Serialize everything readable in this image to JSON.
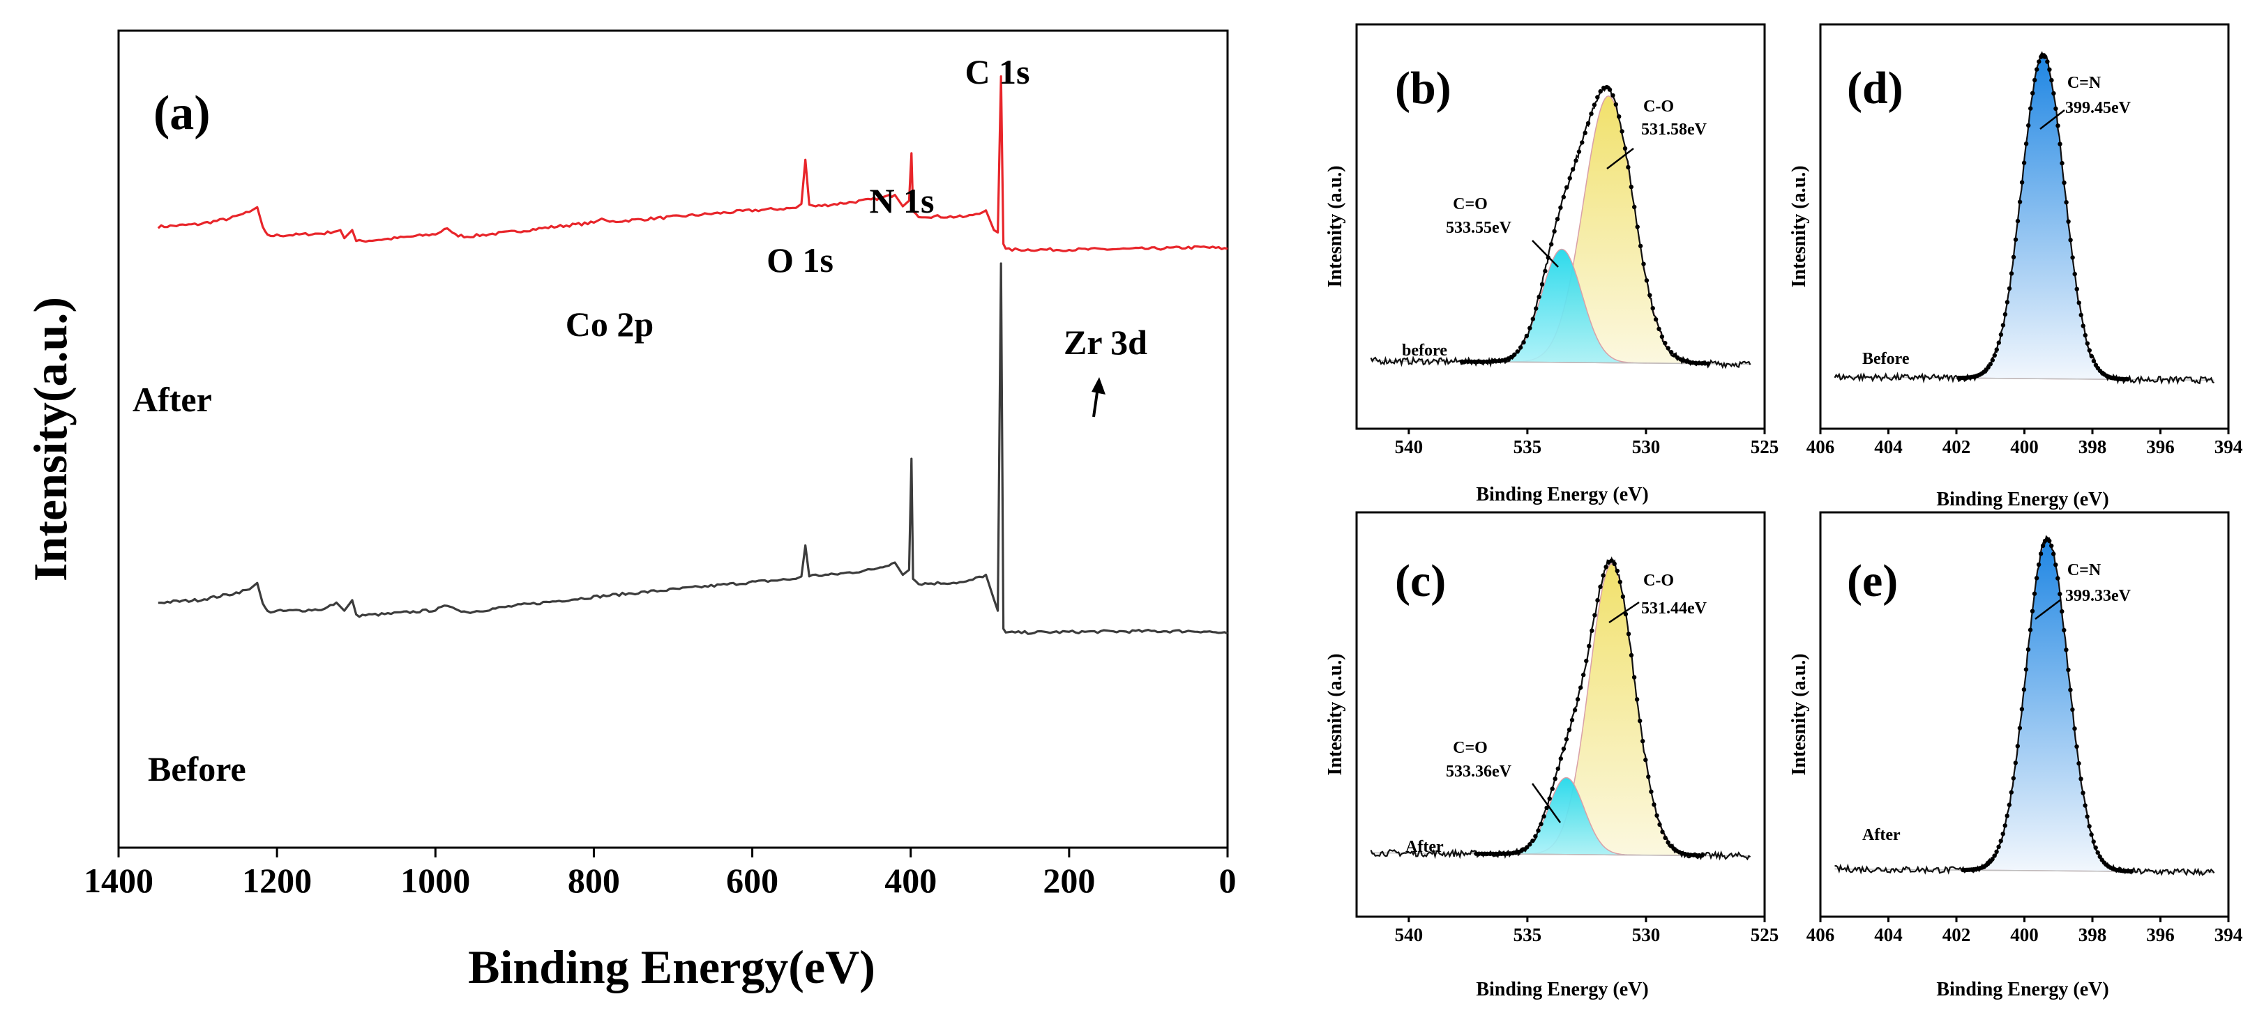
{
  "chart_data": [
    {
      "id": "a",
      "type": "line",
      "panel_label": "(a)",
      "xlabel": "Binding Energy(eV)",
      "ylabel": "Intensity(a.u.)",
      "xlim": [
        1400,
        0
      ],
      "xticks": [
        1400,
        1200,
        1000,
        800,
        600,
        400,
        200,
        0
      ],
      "x_reversed": true,
      "ylim": [
        0,
        100
      ],
      "y_unit": "arbitrary units (relative)",
      "series": [
        {
          "name": "After",
          "color": "#e8252a",
          "points": [
            [
              1350,
              76.0
            ],
            [
              1300,
              76.3
            ],
            [
              1260,
              77.0
            ],
            [
              1235,
              77.8
            ],
            [
              1225,
              78.4
            ],
            [
              1218,
              76.0
            ],
            [
              1212,
              74.9
            ],
            [
              1180,
              75.0
            ],
            [
              1140,
              75.2
            ],
            [
              1120,
              75.6
            ],
            [
              1115,
              74.6
            ],
            [
              1105,
              75.6
            ],
            [
              1100,
              74.2
            ],
            [
              1060,
              74.5
            ],
            [
              1000,
              75.1
            ],
            [
              985,
              75.8
            ],
            [
              975,
              75.0
            ],
            [
              960,
              74.8
            ],
            [
              900,
              75.4
            ],
            [
              850,
              76.0
            ],
            [
              800,
              76.5
            ],
            [
              790,
              77.0
            ],
            [
              780,
              76.6
            ],
            [
              700,
              77.2
            ],
            [
              600,
              78.0
            ],
            [
              545,
              78.3
            ],
            [
              538,
              78.8
            ],
            [
              533,
              84.2
            ],
            [
              528,
              78.7
            ],
            [
              520,
              78.5
            ],
            [
              450,
              79.3
            ],
            [
              420,
              79.9
            ],
            [
              410,
              78.5
            ],
            [
              402,
              79.2
            ],
            [
              399,
              85.0
            ],
            [
              397,
              77.9
            ],
            [
              390,
              77.3
            ],
            [
              330,
              77.2
            ],
            [
              305,
              78.0
            ],
            [
              295,
              75.6
            ],
            [
              290,
              75.3
            ],
            [
              286,
              94.4
            ],
            [
              283,
              73.9
            ],
            [
              280,
              73.2
            ],
            [
              200,
              73.2
            ],
            [
              100,
              73.3
            ],
            [
              30,
              73.5
            ],
            [
              0,
              73.3
            ]
          ]
        },
        {
          "name": "Before",
          "color": "#3c3c3c",
          "points": [
            [
              1350,
              30.0
            ],
            [
              1300,
              30.3
            ],
            [
              1260,
              31.0
            ],
            [
              1235,
              31.6
            ],
            [
              1225,
              32.4
            ],
            [
              1218,
              29.9
            ],
            [
              1212,
              28.9
            ],
            [
              1180,
              29.0
            ],
            [
              1140,
              29.2
            ],
            [
              1125,
              30.0
            ],
            [
              1115,
              29.0
            ],
            [
              1105,
              30.3
            ],
            [
              1100,
              28.4
            ],
            [
              1060,
              28.6
            ],
            [
              1000,
              29.1
            ],
            [
              985,
              29.6
            ],
            [
              975,
              29.3
            ],
            [
              960,
              28.8
            ],
            [
              900,
              29.6
            ],
            [
              800,
              30.7
            ],
            [
              700,
              31.6
            ],
            [
              600,
              32.5
            ],
            [
              545,
              32.9
            ],
            [
              538,
              33.2
            ],
            [
              533,
              37.0
            ],
            [
              528,
              33.3
            ],
            [
              500,
              33.4
            ],
            [
              450,
              34.0
            ],
            [
              420,
              34.9
            ],
            [
              410,
              33.4
            ],
            [
              402,
              34.0
            ],
            [
              399,
              47.6
            ],
            [
              397,
              32.9
            ],
            [
              390,
              32.3
            ],
            [
              330,
              32.5
            ],
            [
              305,
              33.4
            ],
            [
              295,
              30.4
            ],
            [
              290,
              29.0
            ],
            [
              286,
              71.5
            ],
            [
              283,
              26.8
            ],
            [
              280,
              26.3
            ],
            [
              200,
              26.4
            ],
            [
              100,
              26.5
            ],
            [
              30,
              26.5
            ],
            [
              0,
              26.2
            ]
          ]
        }
      ],
      "annotations": [
        {
          "text": "C 1s",
          "x": 286
        },
        {
          "text": "N 1s",
          "x": 399
        },
        {
          "text": "O 1s",
          "x": 533
        },
        {
          "text": "Co 2p",
          "x": 780
        },
        {
          "text": "Zr 3d",
          "x": 183
        }
      ],
      "series_labels": {
        "after": "After",
        "before": "Before"
      }
    },
    {
      "id": "b",
      "type": "line",
      "panel_label": "(b)",
      "xlabel": "Binding Energy (eV)",
      "ylabel": "Intesnity (a.u.)",
      "xlim": [
        542.2,
        525
      ],
      "xticks": [
        540,
        535,
        530,
        525
      ],
      "x_reversed": true,
      "ylim": [
        0,
        100
      ],
      "baseline": 16,
      "sample_label": "before",
      "fit_peaks": [
        {
          "name": "C-O",
          "center": 531.58,
          "height": 66,
          "sigma": 1.05,
          "color": "#f1e47a",
          "label_line1": "C-O",
          "label_line2": "531.58eV"
        },
        {
          "name": "C=O",
          "center": 533.55,
          "height": 28,
          "sigma": 0.85,
          "color": "#5ce1ef",
          "label_line1": "C=O",
          "label_line2": "533.55eV"
        }
      ]
    },
    {
      "id": "c",
      "type": "line",
      "panel_label": "(c)",
      "xlabel": "Binding Energy (eV)",
      "ylabel": "Intesnity (a.u.)",
      "xlim": [
        542.2,
        525
      ],
      "xticks": [
        540,
        535,
        530,
        525
      ],
      "x_reversed": true,
      "ylim": [
        0,
        100
      ],
      "baseline": 15,
      "sample_label": "After",
      "fit_peaks": [
        {
          "name": "C-O",
          "center": 531.44,
          "height": 72,
          "sigma": 0.95,
          "color": "#f1e47a",
          "label_line1": "C-O",
          "label_line2": "531.44eV"
        },
        {
          "name": "C=O",
          "center": 533.36,
          "height": 19,
          "sigma": 0.75,
          "color": "#5ce1ef",
          "label_line1": "C=O",
          "label_line2": "533.36eV"
        }
      ]
    },
    {
      "id": "d",
      "type": "line",
      "panel_label": "(d)",
      "xlabel": "Binding Energy (eV)",
      "ylabel": "Intesnity (a.u.)",
      "xlim": [
        406,
        394
      ],
      "xticks": [
        406,
        404,
        402,
        400,
        398,
        396,
        394
      ],
      "x_reversed": true,
      "ylim": [
        0,
        100
      ],
      "baseline": 12,
      "sample_label": "Before",
      "fit_peaks": [
        {
          "name": "C=N",
          "center": 399.45,
          "height": 80,
          "sigma": 0.62,
          "color": "#2f8fe6",
          "label_line1": "C=N",
          "label_line2": "399.45eV"
        }
      ]
    },
    {
      "id": "e",
      "type": "line",
      "panel_label": "(e)",
      "xlabel": "Binding Energy (eV)",
      "ylabel": "Intesnity (a.u.)",
      "xlim": [
        406,
        394
      ],
      "xticks": [
        406,
        404,
        402,
        400,
        398,
        396,
        394
      ],
      "x_reversed": true,
      "ylim": [
        0,
        100
      ],
      "baseline": 11,
      "sample_label": "After",
      "fit_peaks": [
        {
          "name": "C=N",
          "center": 399.33,
          "height": 82,
          "sigma": 0.62,
          "color": "#2f8fe6",
          "label_line1": "C=N",
          "label_line2": "399.33eV"
        }
      ]
    }
  ]
}
